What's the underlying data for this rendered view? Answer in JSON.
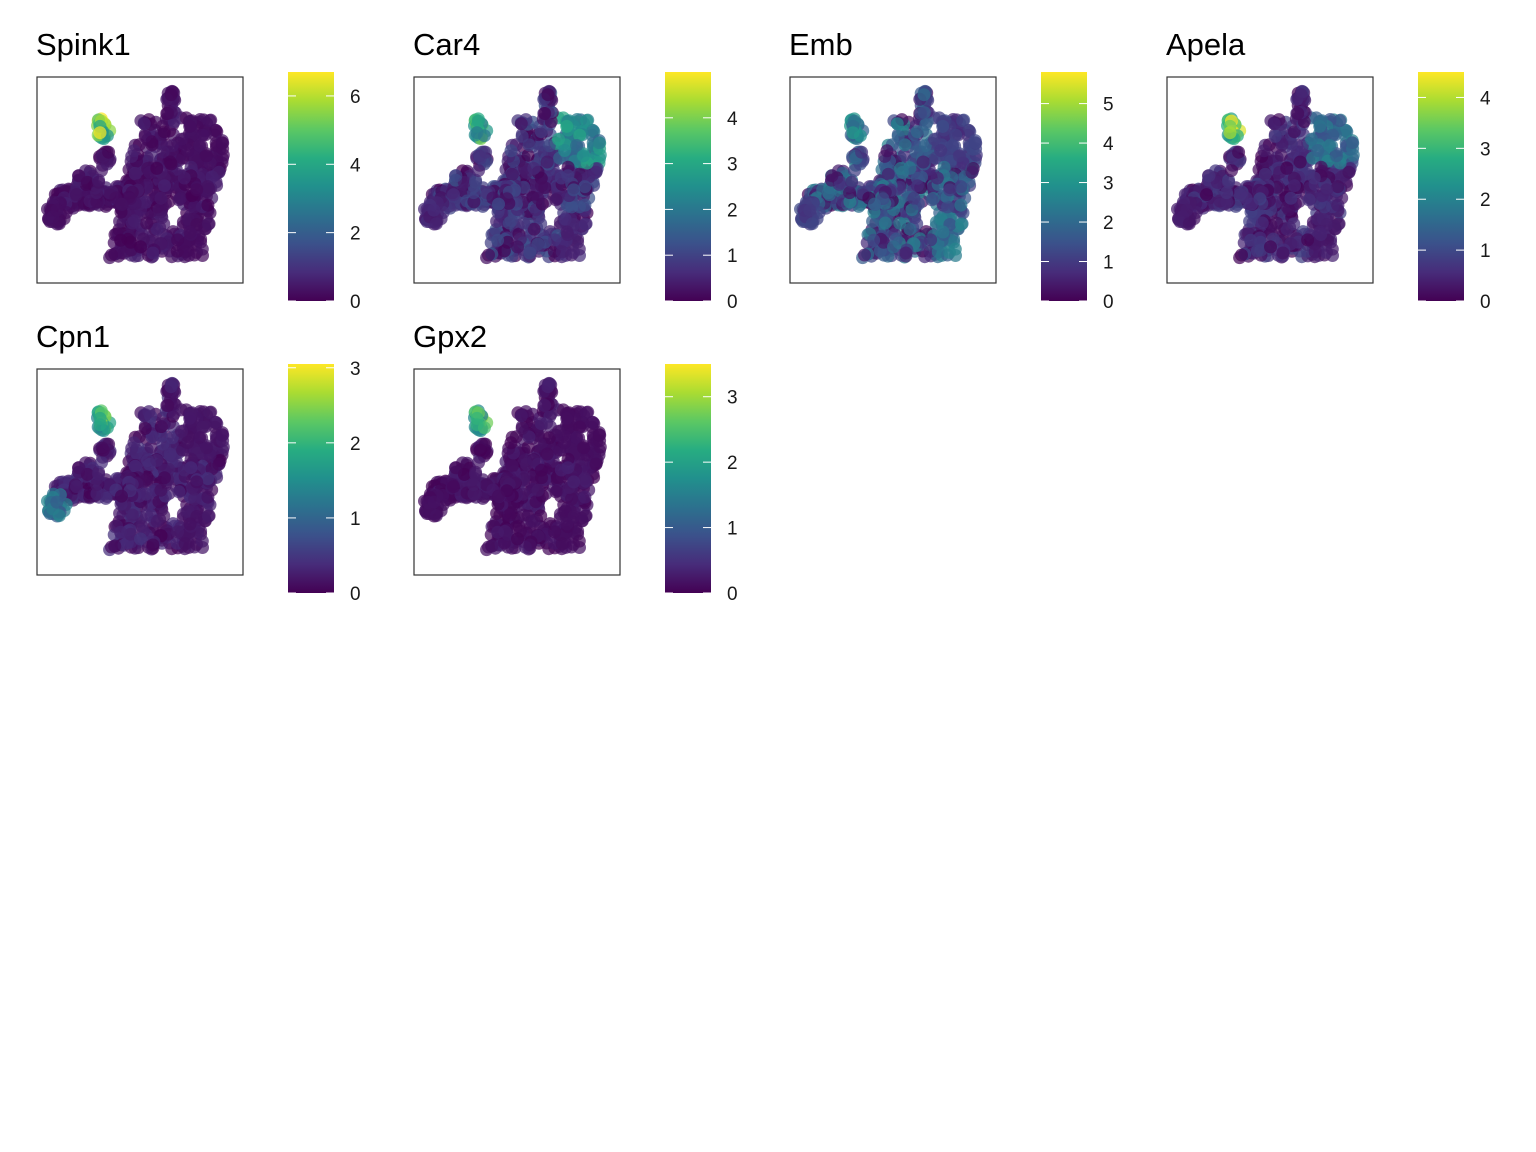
{
  "chart_data": [
    {
      "type": "scatter",
      "title": "Spink1",
      "xlabel": "",
      "ylabel": "",
      "colorbar": {
        "colormap": "viridis",
        "range": [
          0,
          6.7
        ],
        "ticks": [
          "0",
          "2",
          "4",
          "6"
        ]
      },
      "highlight": {
        "yellow_cluster": 6.0,
        "core": 0.3
      }
    },
    {
      "type": "scatter",
      "title": "Car4",
      "xlabel": "",
      "ylabel": "",
      "colorbar": {
        "colormap": "viridis",
        "range": [
          0,
          5.0
        ],
        "ticks": [
          "0",
          "1",
          "2",
          "3",
          "4"
        ]
      },
      "highlight": {
        "yellow_cluster": 3.6,
        "core": 0.6,
        "upper_right": 2.6
      }
    },
    {
      "type": "scatter",
      "title": "Emb",
      "xlabel": "",
      "ylabel": "",
      "colorbar": {
        "colormap": "viridis",
        "range": [
          0,
          5.8
        ],
        "ticks": [
          "0",
          "1",
          "2",
          "3",
          "4",
          "5"
        ]
      },
      "highlight": {
        "yellow_cluster": 3.0,
        "core": 1.2,
        "lower_right": 2.3
      }
    },
    {
      "type": "scatter",
      "title": "Apela",
      "xlabel": "",
      "ylabel": "",
      "colorbar": {
        "colormap": "viridis",
        "range": [
          0,
          4.5
        ],
        "ticks": [
          "0",
          "1",
          "2",
          "3",
          "4"
        ]
      },
      "highlight": {
        "yellow_cluster": 4.0,
        "core": 0.4,
        "upper_right": 1.8
      }
    },
    {
      "type": "scatter",
      "title": "Cpn1",
      "xlabel": "",
      "ylabel": "",
      "colorbar": {
        "colormap": "viridis",
        "range": [
          0,
          3.05
        ],
        "ticks": [
          "0",
          "1",
          "2",
          "3"
        ]
      },
      "highlight": {
        "yellow_cluster": 2.3,
        "core": 0.2,
        "left_tip": 1.4
      }
    },
    {
      "type": "scatter",
      "title": "Gpx2",
      "xlabel": "",
      "ylabel": "",
      "colorbar": {
        "colormap": "viridis",
        "range": [
          0,
          3.5
        ],
        "ticks": [
          "0",
          "1",
          "2",
          "3"
        ]
      },
      "highlight": {
        "yellow_cluster": 2.6,
        "core": 0.15
      }
    }
  ]
}
